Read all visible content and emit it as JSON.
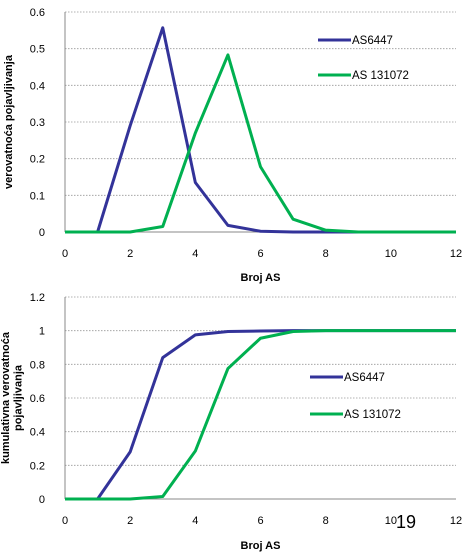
{
  "page_number": "19",
  "colors": {
    "series1": "#333399",
    "series2": "#00b050",
    "grid": "#999999"
  },
  "chart_data": [
    {
      "type": "line",
      "title": "",
      "xlabel": "Broj AS",
      "ylabel": "verovatnoća pojavljivanja",
      "xlim": [
        0,
        12
      ],
      "ylim": [
        0,
        0.6
      ],
      "xticks": [
        "0",
        "2",
        "4",
        "6",
        "8",
        "10",
        "12"
      ],
      "yticks": [
        "0",
        "0.1",
        "0.2",
        "0.3",
        "0.4",
        "0.5",
        "0.6"
      ],
      "grid": true,
      "legend_position": "top-right",
      "x": [
        0,
        1,
        2,
        3,
        4,
        5,
        6,
        7,
        8,
        9,
        10,
        11,
        12
      ],
      "series": [
        {
          "name": "AS6447",
          "values": [
            0,
            0,
            0.29,
            0.557,
            0.135,
            0.018,
            0.002,
            0,
            0,
            0,
            0,
            0,
            0
          ]
        },
        {
          "name": "AS 131072",
          "values": [
            0,
            0,
            0,
            0.015,
            0.27,
            0.483,
            0.178,
            0.035,
            0.005,
            0,
            0,
            0,
            0
          ]
        }
      ]
    },
    {
      "type": "line",
      "title": "",
      "xlabel": "Broj AS",
      "ylabel": "kumulativna verovatnoća pojavljivanja",
      "xlim": [
        0,
        12
      ],
      "ylim": [
        0,
        1.2
      ],
      "xticks": [
        "0",
        "2",
        "4",
        "6",
        "8",
        "10",
        "12"
      ],
      "yticks": [
        "0",
        "0.2",
        "0.4",
        "0.6",
        "0.8",
        "1",
        "1.2"
      ],
      "grid": true,
      "legend_position": "middle-right",
      "x": [
        0,
        1,
        2,
        3,
        4,
        5,
        6,
        7,
        8,
        9,
        10,
        11,
        12
      ],
      "series": [
        {
          "name": "AS6447",
          "values": [
            0,
            0,
            0.28,
            0.84,
            0.975,
            0.995,
            0.998,
            1,
            1,
            1,
            1,
            1,
            1
          ]
        },
        {
          "name": "AS 131072",
          "values": [
            0,
            0,
            0,
            0.015,
            0.285,
            0.775,
            0.955,
            0.995,
            1,
            1,
            1,
            1,
            1
          ]
        }
      ]
    }
  ]
}
